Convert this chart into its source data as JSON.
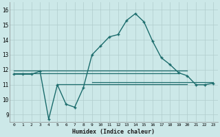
{
  "xlabel": "Humidex (Indice chaleur)",
  "background_color": "#cce8e8",
  "grid_color": "#b0cccc",
  "line_color": "#1a6b6b",
  "xlim": [
    -0.5,
    23.5
  ],
  "ylim": [
    8.5,
    16.5
  ],
  "yticks": [
    9,
    10,
    11,
    12,
    13,
    14,
    15,
    16
  ],
  "xticks": [
    0,
    1,
    2,
    3,
    4,
    5,
    6,
    7,
    8,
    9,
    10,
    11,
    12,
    13,
    14,
    15,
    16,
    17,
    18,
    19,
    20,
    21,
    22,
    23
  ],
  "main_x": [
    0,
    1,
    2,
    3,
    4,
    5,
    6,
    7,
    8,
    9,
    10,
    11,
    12,
    13,
    14,
    15,
    16,
    17,
    18,
    19,
    20,
    21,
    22,
    23
  ],
  "main_y": [
    11.7,
    11.7,
    11.7,
    11.9,
    8.7,
    11.0,
    9.7,
    9.5,
    10.8,
    13.0,
    13.6,
    14.2,
    14.35,
    15.3,
    15.75,
    15.2,
    13.9,
    12.8,
    12.35,
    11.8,
    11.6,
    11.0,
    11.0,
    11.1
  ],
  "hline1_x": [
    0,
    19
  ],
  "hline1_y": [
    11.75,
    11.75
  ],
  "hline2_x": [
    0,
    20
  ],
  "hline2_y": [
    11.95,
    11.95
  ],
  "hline3_x": [
    5,
    20
  ],
  "hline3_y": [
    11.05,
    11.05
  ],
  "hline4_x": [
    9,
    23
  ],
  "hline4_y": [
    11.18,
    11.18
  ]
}
